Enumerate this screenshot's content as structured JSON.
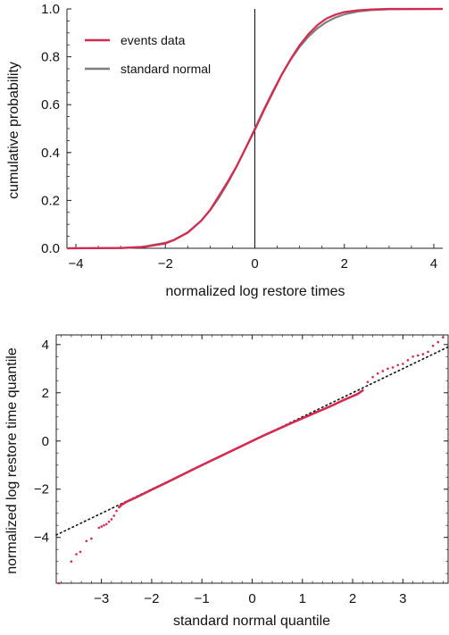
{
  "colors": {
    "events": "#d6294f",
    "normal": "#7f7f7f",
    "axis": "#222222",
    "reference_line": "#111111"
  },
  "chart_data": [
    {
      "type": "line",
      "title": "",
      "xlabel": "normalized log restore times",
      "ylabel": "cumulative probability",
      "xlim": [
        -4.2,
        4.2
      ],
      "ylim": [
        0,
        1.0
      ],
      "x_ticks": [
        -4,
        -2,
        0,
        2,
        4
      ],
      "y_ticks": [
        0.0,
        0.2,
        0.4,
        0.6,
        0.8,
        1.0
      ],
      "legend_position": "top-left",
      "vertical_line_x": 0,
      "series": [
        {
          "name": "events data",
          "color": "#d6294f",
          "x": [
            -4.2,
            -3.0,
            -2.5,
            -2.0,
            -1.8,
            -1.5,
            -1.2,
            -1.0,
            -0.8,
            -0.6,
            -0.4,
            -0.2,
            0.0,
            0.2,
            0.4,
            0.6,
            0.8,
            1.0,
            1.2,
            1.4,
            1.6,
            1.8,
            2.0,
            2.3,
            2.6,
            3.0,
            4.2
          ],
          "y": [
            0.0,
            0.001,
            0.005,
            0.02,
            0.035,
            0.065,
            0.115,
            0.16,
            0.22,
            0.28,
            0.345,
            0.42,
            0.495,
            0.575,
            0.65,
            0.725,
            0.79,
            0.848,
            0.895,
            0.933,
            0.96,
            0.976,
            0.987,
            0.994,
            0.998,
            1.0,
            1.0
          ]
        },
        {
          "name": "standard normal",
          "color": "#7f7f7f",
          "x": [
            -4.2,
            -3.0,
            -2.5,
            -2.0,
            -1.8,
            -1.5,
            -1.2,
            -1.0,
            -0.8,
            -0.6,
            -0.4,
            -0.2,
            0.0,
            0.2,
            0.4,
            0.6,
            0.8,
            1.0,
            1.2,
            1.4,
            1.6,
            1.8,
            2.0,
            2.3,
            2.6,
            3.0,
            4.2
          ],
          "y": [
            0.0,
            0.0013,
            0.0062,
            0.0228,
            0.0359,
            0.0668,
            0.1151,
            0.1587,
            0.2119,
            0.2743,
            0.3446,
            0.4207,
            0.5,
            0.5793,
            0.6554,
            0.7257,
            0.7881,
            0.8413,
            0.8849,
            0.9192,
            0.9452,
            0.9641,
            0.9772,
            0.9893,
            0.9953,
            0.9987,
            1.0
          ]
        }
      ]
    },
    {
      "type": "scatter",
      "title": "",
      "xlabel": "standard normal quantile",
      "ylabel": "normalized log restore time quantile",
      "xlim": [
        -3.9,
        3.9
      ],
      "ylim": [
        -5.9,
        4.4
      ],
      "x_ticks": [
        -3,
        -2,
        -1,
        0,
        1,
        2,
        3
      ],
      "y_ticks": [
        -4,
        -2,
        0,
        2,
        4
      ],
      "reference_line": {
        "slope": 1,
        "intercept": 0,
        "style": "dotted"
      },
      "series": [
        {
          "name": "",
          "color": "#d6294f",
          "points": [
            [
              -3.85,
              -5.9
            ],
            [
              -3.6,
              -5.0
            ],
            [
              -3.5,
              -4.7
            ],
            [
              -3.42,
              -4.6
            ],
            [
              -3.3,
              -4.15
            ],
            [
              -3.2,
              -4.05
            ],
            [
              -3.05,
              -3.6
            ],
            [
              -3.0,
              -3.55
            ],
            [
              -2.95,
              -3.5
            ],
            [
              -2.9,
              -3.45
            ],
            [
              -2.85,
              -3.35
            ],
            [
              -2.8,
              -3.25
            ],
            [
              -2.75,
              -3.1
            ],
            [
              -2.7,
              -2.9
            ],
            [
              -2.65,
              -2.75
            ],
            [
              -2.6,
              -2.65
            ],
            [
              -2.5,
              -2.52
            ],
            [
              -2.3,
              -2.33
            ],
            [
              -2.0,
              -2.02
            ],
            [
              -1.7,
              -1.72
            ],
            [
              -1.4,
              -1.41
            ],
            [
              -1.1,
              -1.1
            ],
            [
              -0.8,
              -0.8
            ],
            [
              -0.5,
              -0.5
            ],
            [
              -0.2,
              -0.2
            ],
            [
              0.0,
              0.0
            ],
            [
              0.2,
              0.2
            ],
            [
              0.5,
              0.48
            ],
            [
              0.8,
              0.76
            ],
            [
              1.1,
              1.03
            ],
            [
              1.4,
              1.3
            ],
            [
              1.6,
              1.48
            ],
            [
              1.8,
              1.68
            ],
            [
              2.0,
              1.86
            ],
            [
              2.1,
              1.95
            ],
            [
              2.2,
              2.1
            ],
            [
              2.3,
              2.45
            ],
            [
              2.4,
              2.65
            ],
            [
              2.5,
              2.8
            ],
            [
              2.6,
              2.9
            ],
            [
              2.7,
              3.0
            ],
            [
              2.8,
              3.05
            ],
            [
              2.9,
              3.15
            ],
            [
              3.0,
              3.2
            ],
            [
              3.1,
              3.35
            ],
            [
              3.2,
              3.5
            ],
            [
              3.3,
              3.55
            ],
            [
              3.4,
              3.6
            ],
            [
              3.5,
              3.7
            ],
            [
              3.6,
              3.95
            ],
            [
              3.7,
              4.1
            ],
            [
              3.8,
              4.3
            ]
          ]
        }
      ]
    }
  ]
}
